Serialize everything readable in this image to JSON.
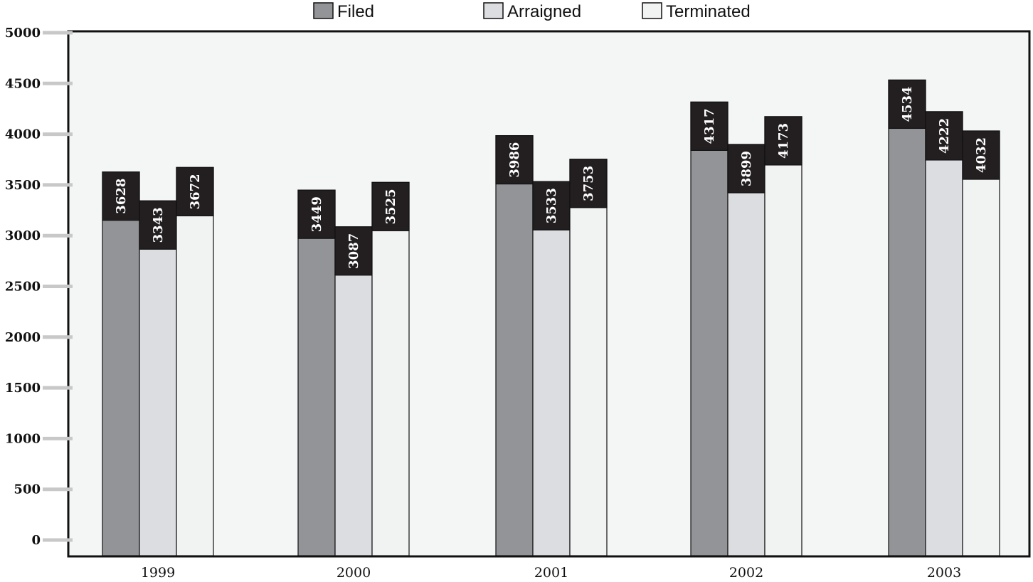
{
  "chart_data": {
    "type": "bar",
    "title": "",
    "xlabel": "",
    "ylabel": "",
    "categories": [
      "1999",
      "2000",
      "2001",
      "2002",
      "2003"
    ],
    "series": [
      {
        "name": "Filed",
        "values": [
          3628,
          3449,
          3986,
          4317,
          4534
        ],
        "color": "#939497"
      },
      {
        "name": "Arraigned",
        "values": [
          3343,
          3087,
          3533,
          3899,
          4222
        ],
        "color": "#dcdde0"
      },
      {
        "name": "Terminated",
        "values": [
          3672,
          3525,
          3753,
          4173,
          4032
        ],
        "color": "#f1f2f2"
      }
    ],
    "yticks": [
      "0",
      "500",
      "1000",
      "1500",
      "2000",
      "2500",
      "3000",
      "3500",
      "4000",
      "4500",
      "5000"
    ],
    "ylim": [
      0,
      5000
    ],
    "grid": false,
    "legend_position": "top",
    "plot_background": "#f4f6f5",
    "label_box_color": "#231f20"
  }
}
